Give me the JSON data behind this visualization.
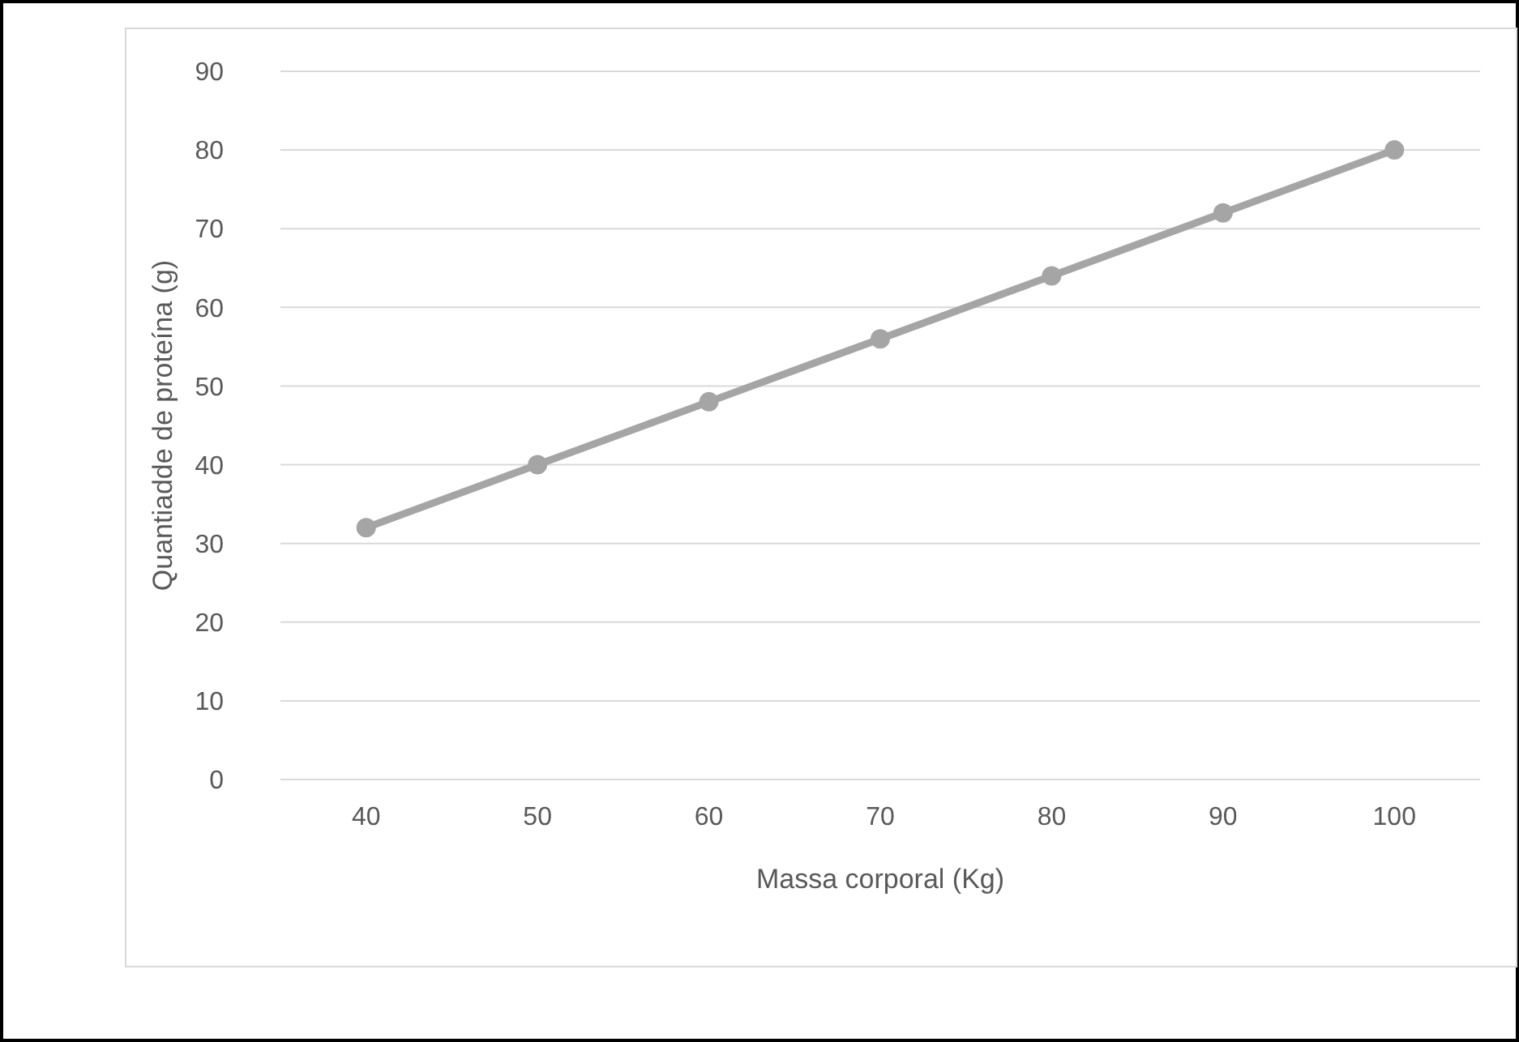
{
  "chart_data": {
    "type": "line",
    "xlabel": "Massa corporal (Kg)",
    "ylabel": "Quantiadde de proteína (g)",
    "categories": [
      "40",
      "50",
      "60",
      "70",
      "80",
      "90",
      "100"
    ],
    "series": [
      {
        "color": "#a5a5a5",
        "values": [
          32,
          40,
          48,
          56,
          64,
          72,
          80
        ]
      }
    ],
    "ylim": [
      0,
      90
    ],
    "yticks": [
      0,
      10,
      20,
      30,
      40,
      50,
      60,
      70,
      80,
      90
    ],
    "grid": "y",
    "marker": "circle",
    "line_style": "solid"
  }
}
